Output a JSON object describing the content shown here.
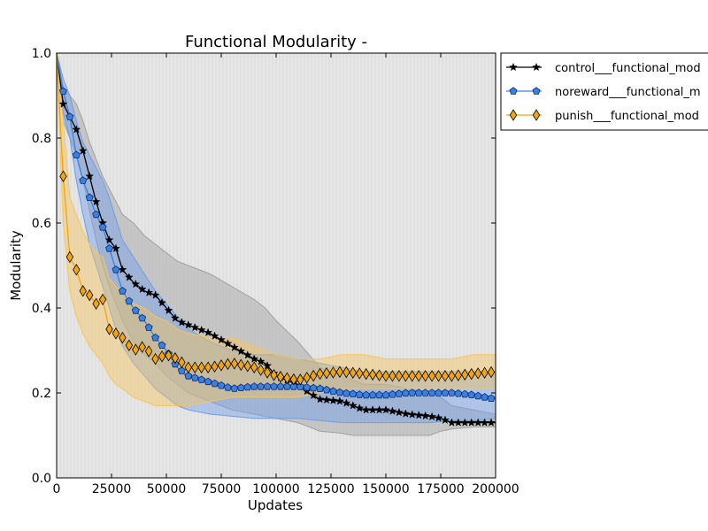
{
  "chart_data": {
    "type": "line",
    "title": "Functional Modularity -",
    "xlabel": "Updates",
    "ylabel": "Modularity",
    "xlim": [
      0,
      200000
    ],
    "ylim": [
      0,
      1.0
    ],
    "x_ticks": [
      0,
      25000,
      50000,
      75000,
      100000,
      125000,
      150000,
      175000,
      200000
    ],
    "x_tick_labels": [
      "0",
      "25000",
      "50000",
      "75000",
      "100000",
      "125000",
      "150000",
      "175000",
      "200000"
    ],
    "y_ticks": [
      0,
      0.2,
      0.4,
      0.6,
      0.8,
      1.0
    ],
    "y_tick_labels": [
      "0.0",
      "0.2",
      "0.4",
      "0.6",
      "0.8",
      "1.0"
    ],
    "legend_position": "outside upper right (clipped)",
    "series": [
      {
        "name": "control___functional_mod",
        "color": "#000000",
        "band_color": "#a0a0a0",
        "marker": "star",
        "x": [
          0,
          3000,
          6000,
          9000,
          12000,
          15000,
          18000,
          21000,
          24000,
          27000,
          30000,
          35000,
          40000,
          45000,
          50000,
          55000,
          60000,
          70000,
          80000,
          90000,
          95000,
          100000,
          110000,
          115000,
          120000,
          130000,
          135000,
          140000,
          150000,
          160000,
          170000,
          175000,
          180000,
          190000,
          200000
        ],
        "values": [
          1.0,
          0.88,
          0.85,
          0.82,
          0.77,
          0.71,
          0.65,
          0.6,
          0.56,
          0.54,
          0.49,
          0.46,
          0.44,
          0.43,
          0.4,
          0.37,
          0.36,
          0.34,
          0.31,
          0.28,
          0.27,
          0.24,
          0.22,
          0.2,
          0.185,
          0.18,
          0.17,
          0.16,
          0.16,
          0.15,
          0.145,
          0.14,
          0.13,
          0.13,
          0.13
        ],
        "band_low": [
          1.0,
          0.84,
          0.8,
          0.76,
          0.7,
          0.63,
          0.56,
          0.5,
          0.45,
          0.41,
          0.37,
          0.32,
          0.29,
          0.27,
          0.24,
          0.22,
          0.2,
          0.18,
          0.16,
          0.15,
          0.145,
          0.14,
          0.13,
          0.12,
          0.11,
          0.105,
          0.1,
          0.1,
          0.1,
          0.1,
          0.1,
          0.11,
          0.115,
          0.12,
          0.12
        ],
        "band_high": [
          1.0,
          0.92,
          0.9,
          0.88,
          0.84,
          0.79,
          0.75,
          0.71,
          0.68,
          0.65,
          0.62,
          0.6,
          0.57,
          0.55,
          0.53,
          0.51,
          0.5,
          0.48,
          0.45,
          0.42,
          0.4,
          0.37,
          0.32,
          0.29,
          0.26,
          0.24,
          0.23,
          0.22,
          0.22,
          0.21,
          0.2,
          0.19,
          0.17,
          0.16,
          0.15
        ]
      },
      {
        "name": "noreward___functional_m",
        "color": "#3b80e0",
        "band_color": "#6f9de8",
        "marker": "pentagon",
        "x": [
          0,
          3000,
          6000,
          9000,
          12000,
          15000,
          18000,
          21000,
          24000,
          27000,
          30000,
          35000,
          40000,
          45000,
          50000,
          55000,
          60000,
          70000,
          80000,
          90000,
          100000,
          110000,
          120000,
          130000,
          140000,
          150000,
          160000,
          170000,
          180000,
          190000,
          200000
        ],
        "values": [
          1.0,
          0.91,
          0.85,
          0.76,
          0.7,
          0.66,
          0.62,
          0.59,
          0.54,
          0.49,
          0.44,
          0.4,
          0.37,
          0.33,
          0.3,
          0.26,
          0.24,
          0.225,
          0.21,
          0.215,
          0.215,
          0.215,
          0.21,
          0.2,
          0.195,
          0.195,
          0.2,
          0.2,
          0.2,
          0.195,
          0.185
        ],
        "band_low": [
          1.0,
          0.86,
          0.8,
          0.7,
          0.62,
          0.55,
          0.5,
          0.45,
          0.4,
          0.35,
          0.31,
          0.27,
          0.24,
          0.21,
          0.19,
          0.17,
          0.16,
          0.15,
          0.145,
          0.14,
          0.14,
          0.14,
          0.135,
          0.13,
          0.13,
          0.13,
          0.13,
          0.13,
          0.135,
          0.135,
          0.14
        ],
        "band_high": [
          1.0,
          0.94,
          0.9,
          0.84,
          0.79,
          0.76,
          0.73,
          0.7,
          0.66,
          0.61,
          0.56,
          0.52,
          0.48,
          0.44,
          0.41,
          0.38,
          0.35,
          0.32,
          0.3,
          0.29,
          0.29,
          0.28,
          0.27,
          0.26,
          0.25,
          0.25,
          0.25,
          0.25,
          0.25,
          0.25,
          0.25
        ]
      },
      {
        "name": "punish___functional_mod",
        "color": "#f2a50c",
        "band_color": "#f7c45a",
        "marker": "diamond",
        "x": [
          0,
          3000,
          6000,
          9000,
          12000,
          15000,
          18000,
          21000,
          24000,
          27000,
          30000,
          35000,
          40000,
          45000,
          50000,
          55000,
          60000,
          70000,
          80000,
          90000,
          100000,
          110000,
          120000,
          130000,
          140000,
          150000,
          160000,
          170000,
          180000,
          190000,
          200000
        ],
        "values": [
          1.0,
          0.71,
          0.52,
          0.49,
          0.44,
          0.43,
          0.41,
          0.42,
          0.35,
          0.34,
          0.33,
          0.3,
          0.31,
          0.28,
          0.29,
          0.28,
          0.26,
          0.26,
          0.27,
          0.26,
          0.24,
          0.23,
          0.245,
          0.25,
          0.245,
          0.24,
          0.24,
          0.24,
          0.24,
          0.245,
          0.25
        ],
        "band_low": [
          1.0,
          0.6,
          0.44,
          0.38,
          0.34,
          0.31,
          0.29,
          0.27,
          0.24,
          0.22,
          0.21,
          0.19,
          0.18,
          0.17,
          0.17,
          0.17,
          0.17,
          0.18,
          0.19,
          0.19,
          0.19,
          0.19,
          0.2,
          0.21,
          0.21,
          0.21,
          0.21,
          0.21,
          0.21,
          0.21,
          0.21
        ],
        "band_high": [
          1.0,
          0.84,
          0.66,
          0.62,
          0.58,
          0.55,
          0.53,
          0.52,
          0.47,
          0.45,
          0.44,
          0.41,
          0.4,
          0.38,
          0.37,
          0.35,
          0.34,
          0.33,
          0.33,
          0.31,
          0.29,
          0.28,
          0.28,
          0.29,
          0.29,
          0.28,
          0.28,
          0.28,
          0.28,
          0.29,
          0.29
        ]
      }
    ]
  }
}
